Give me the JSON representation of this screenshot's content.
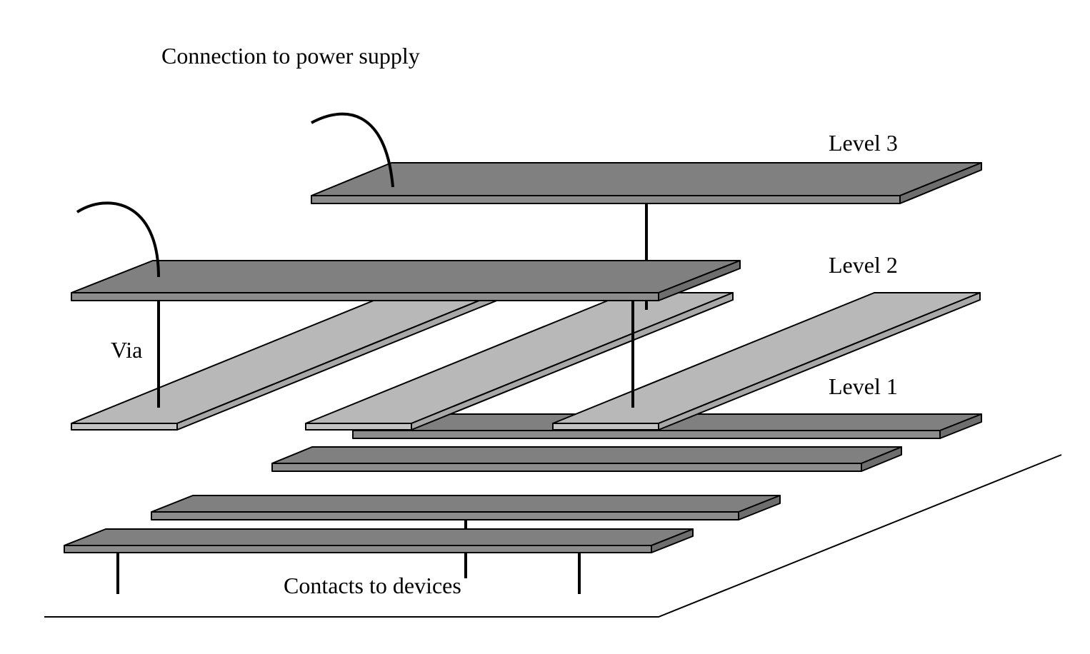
{
  "labels": {
    "power": "Connection to power supply",
    "level3": "Level 3",
    "level2": "Level 2",
    "level1": "Level 1",
    "via": "Via",
    "contacts": "Contacts to devices"
  },
  "colors": {
    "dark_top": "#808080",
    "dark_front": "#8c8c8c",
    "dark_side": "#707070",
    "light_top": "#b8b8b8",
    "light_front": "#c4c4c4",
    "light_side": "#a8a8a8",
    "line": "#000000"
  }
}
